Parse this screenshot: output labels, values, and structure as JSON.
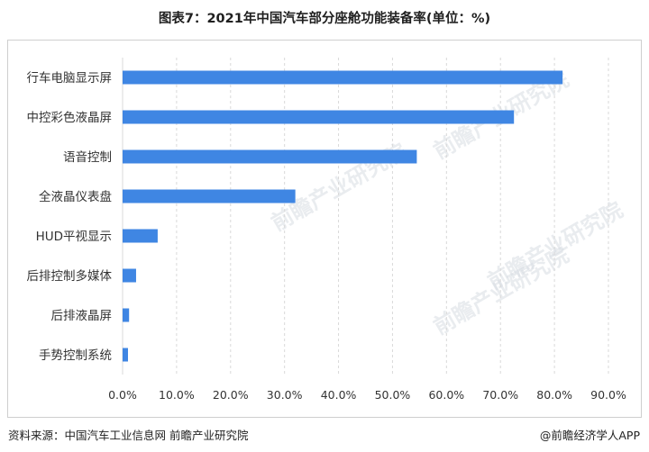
{
  "title": "图表7：2021年中国汽车部分座舱功能装备率(单位：%)",
  "source_text": "资料来源：中国汽车工业信息网 前瞻产业研究院",
  "brand_text": "@前瞻经济学人APP",
  "watermark_text": "前瞻产业研究院",
  "colors": {
    "bar": "#3f86e3",
    "grid": "#d9d9d9",
    "axis_text": "#333333"
  },
  "chart_data": {
    "type": "bar",
    "orientation": "horizontal",
    "categories": [
      "行车电脑显示屏",
      "中控彩色液晶屏",
      "语音控制",
      "全液晶仪表盘",
      "HUD平视显示",
      "后排控制多媒体",
      "后排液晶屏",
      "手势控制系统"
    ],
    "values": [
      81.5,
      72.5,
      54.5,
      32.0,
      6.5,
      2.5,
      1.2,
      1.0
    ],
    "x_ticks": [
      "0.0%",
      "10.0%",
      "20.0%",
      "30.0%",
      "40.0%",
      "50.0%",
      "60.0%",
      "70.0%",
      "80.0%",
      "90.0%"
    ],
    "xlim": [
      0,
      90
    ],
    "grid": "vertical",
    "legend": "none"
  }
}
